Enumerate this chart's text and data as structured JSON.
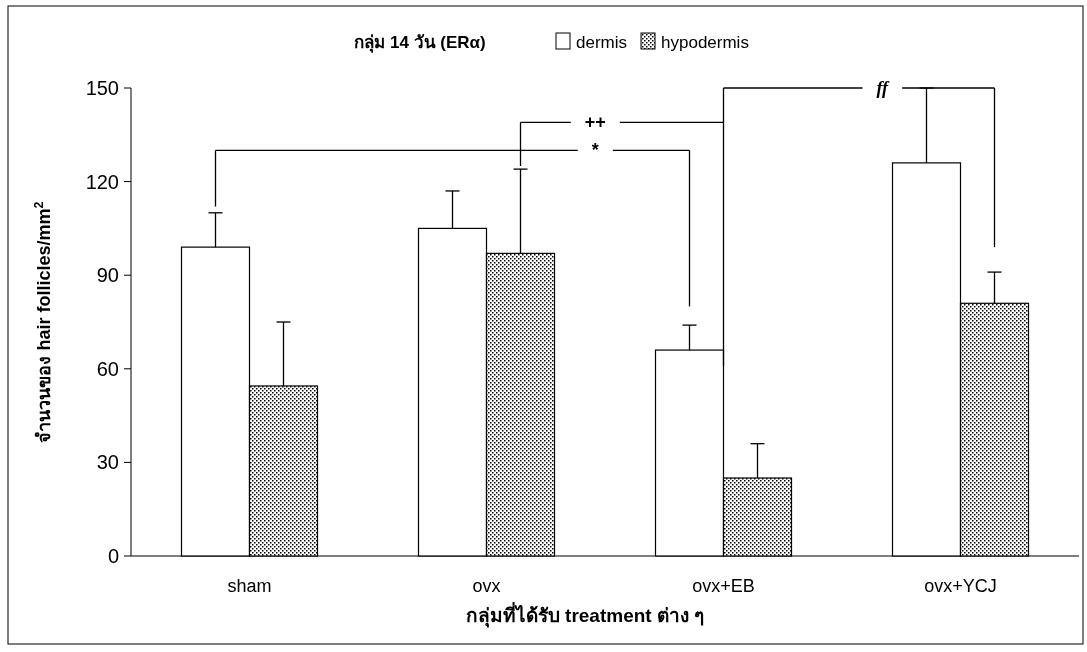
{
  "chart_data": {
    "type": "bar",
    "title": "กลุ่ม 14 วัน (ERα)",
    "xlabel": "กลุ่มที่ได้รับ treatment ต่าง ๆ",
    "ylabel": "จำนวนของ hair follicles/mm$^{2}$",
    "categories": [
      "sham",
      "ovx",
      "ovx+EB",
      "ovx+YCJ"
    ],
    "series": [
      {
        "name": "dermis",
        "color": "#ffffff",
        "values": [
          99,
          105,
          66,
          126
        ],
        "errors": [
          [
            99,
            110
          ],
          [
            105,
            117
          ],
          [
            66,
            74
          ],
          [
            126,
            150
          ]
        ]
      },
      {
        "name": "hypodermis",
        "color": "#000000",
        "values": [
          54.5,
          97,
          25,
          81
        ],
        "errors": [
          [
            54.5,
            75
          ],
          [
            97,
            124
          ],
          [
            25,
            36
          ],
          [
            81,
            91
          ]
        ]
      }
    ],
    "ylim": [
      0,
      150
    ],
    "yticks": [
      0,
      30,
      60,
      90,
      120,
      150
    ],
    "legend": "top",
    "grid": false,
    "annotations": [
      "*",
      "++",
      "ff"
    ]
  }
}
